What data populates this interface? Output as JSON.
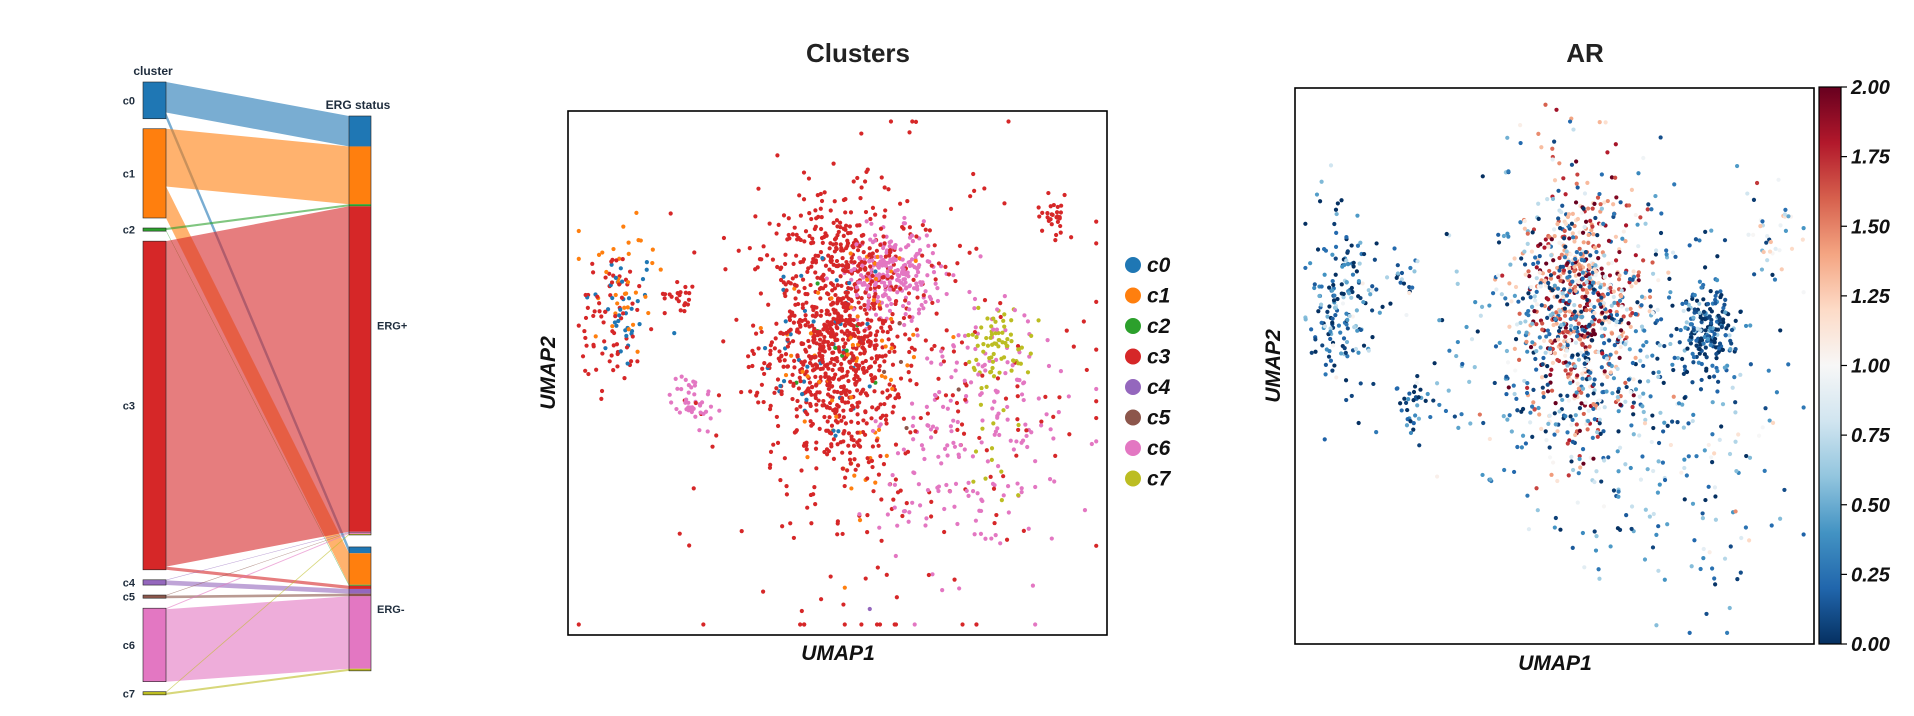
{
  "colors": {
    "c0": "#1f77b4",
    "c1": "#ff7f0e",
    "c2": "#2ca02c",
    "c3": "#d62728",
    "c4": "#9467bd",
    "c5": "#8c564b",
    "c6": "#e377c2",
    "c7": "#bcbd22"
  },
  "chart_data": [
    {
      "type": "sankey",
      "left_header": "cluster",
      "right_header": "ERG status",
      "left_categories": [
        "c0",
        "c1",
        "c2",
        "c3",
        "c4",
        "c5",
        "c6",
        "c7"
      ],
      "right_categories": [
        "ERG+",
        "ERG-"
      ],
      "left_totals": [
        3.5,
        8.5,
        0.3,
        31.3,
        0.5,
        0.3,
        7.0,
        0.3
      ],
      "flows": [
        {
          "from": "c0",
          "to": "ERG+",
          "value": 2.9
        },
        {
          "from": "c0",
          "to": "ERG-",
          "value": 0.6
        },
        {
          "from": "c1",
          "to": "ERG+",
          "value": 5.5
        },
        {
          "from": "c1",
          "to": "ERG-",
          "value": 3.0
        },
        {
          "from": "c2",
          "to": "ERG+",
          "value": 0.2
        },
        {
          "from": "c2",
          "to": "ERG-",
          "value": 0.1
        },
        {
          "from": "c3",
          "to": "ERG+",
          "value": 31.0
        },
        {
          "from": "c3",
          "to": "ERG-",
          "value": 0.3
        },
        {
          "from": "c4",
          "to": "ERG+",
          "value": 0.05
        },
        {
          "from": "c4",
          "to": "ERG-",
          "value": 0.45
        },
        {
          "from": "c5",
          "to": "ERG+",
          "value": 0.05
        },
        {
          "from": "c5",
          "to": "ERG-",
          "value": 0.25
        },
        {
          "from": "c6",
          "to": "ERG+",
          "value": 0.1
        },
        {
          "from": "c6",
          "to": "ERG-",
          "value": 6.9
        },
        {
          "from": "c7",
          "to": "ERG+",
          "value": 0.1
        },
        {
          "from": "c7",
          "to": "ERG-",
          "value": 0.2
        }
      ]
    },
    {
      "type": "scatter",
      "title": "Clusters",
      "xlabel": "UMAP1",
      "ylabel": "UMAP2",
      "legend_position": "right",
      "series": [
        {
          "name": "c0",
          "clusters": [
            {
              "cx": 0.1,
              "cy": 0.62,
              "sx": 0.035,
              "sy": 0.06,
              "n": 35
            },
            {
              "cx": 0.48,
              "cy": 0.55,
              "sx": 0.06,
              "sy": 0.1,
              "n": 40
            }
          ]
        },
        {
          "name": "c1",
          "clusters": [
            {
              "cx": 0.1,
              "cy": 0.68,
              "sx": 0.04,
              "sy": 0.08,
              "n": 35
            },
            {
              "cx": 0.53,
              "cy": 0.55,
              "sx": 0.08,
              "sy": 0.12,
              "n": 60
            },
            {
              "cx": 0.56,
              "cy": 0.3,
              "sx": 0.03,
              "sy": 0.05,
              "n": 10
            }
          ]
        },
        {
          "name": "c2",
          "clusters": [
            {
              "cx": 0.5,
              "cy": 0.58,
              "sx": 0.05,
              "sy": 0.07,
              "n": 8
            }
          ]
        },
        {
          "name": "c3",
          "clusters": [
            {
              "cx": 0.5,
              "cy": 0.57,
              "sx": 0.06,
              "sy": 0.13,
              "n": 900
            },
            {
              "cx": 0.08,
              "cy": 0.6,
              "sx": 0.03,
              "sy": 0.07,
              "n": 70
            },
            {
              "cx": 0.21,
              "cy": 0.65,
              "sx": 0.015,
              "sy": 0.015,
              "n": 22
            },
            {
              "cx": 0.9,
              "cy": 0.8,
              "sx": 0.015,
              "sy": 0.02,
              "n": 28
            },
            {
              "cx": 0.6,
              "cy": 0.45,
              "sx": 0.2,
              "sy": 0.22,
              "n": 220
            },
            {
              "cx": 0.58,
              "cy": 0.75,
              "sx": 0.12,
              "sy": 0.08,
              "n": 50
            }
          ]
        },
        {
          "name": "c4",
          "clusters": [
            {
              "cx": 0.56,
              "cy": 0.05,
              "sx": 0.003,
              "sy": 0.003,
              "n": 1
            }
          ]
        },
        {
          "name": "c5",
          "clusters": [
            {
              "cx": 0.6,
              "cy": 0.45,
              "sx": 0.1,
              "sy": 0.1,
              "n": 6
            }
          ]
        },
        {
          "name": "c6",
          "clusters": [
            {
              "cx": 0.6,
              "cy": 0.69,
              "sx": 0.04,
              "sy": 0.04,
              "n": 240
            },
            {
              "cx": 0.23,
              "cy": 0.45,
              "sx": 0.02,
              "sy": 0.025,
              "n": 45
            },
            {
              "cx": 0.76,
              "cy": 0.55,
              "sx": 0.06,
              "sy": 0.06,
              "n": 60
            },
            {
              "cx": 0.75,
              "cy": 0.33,
              "sx": 0.09,
              "sy": 0.12,
              "n": 160
            }
          ]
        },
        {
          "name": "c7",
          "clusters": [
            {
              "cx": 0.8,
              "cy": 0.56,
              "sx": 0.03,
              "sy": 0.035,
              "n": 70
            },
            {
              "cx": 0.78,
              "cy": 0.3,
              "sx": 0.05,
              "sy": 0.1,
              "n": 14
            }
          ]
        }
      ]
    },
    {
      "type": "scatter",
      "title": "AR",
      "xlabel": "UMAP1",
      "ylabel": "UMAP2",
      "colorbar": {
        "range": [
          0.0,
          2.0
        ],
        "ticks": [
          "0.00",
          "0.25",
          "0.50",
          "0.75",
          "1.00",
          "1.25",
          "1.50",
          "1.75",
          "2.00"
        ],
        "colormap": [
          "#053061",
          "#2166ac",
          "#4393c3",
          "#92c5de",
          "#d1e5f0",
          "#f7f7f7",
          "#fddbc7",
          "#f4a582",
          "#d6604d",
          "#b2182b",
          "#67001f"
        ]
      },
      "groups": [
        {
          "cx": 0.09,
          "cy": 0.63,
          "sx": 0.035,
          "sy": 0.08,
          "n": 180,
          "level": 0.25
        },
        {
          "cx": 0.21,
          "cy": 0.66,
          "sx": 0.015,
          "sy": 0.015,
          "n": 18,
          "level": 0.3
        },
        {
          "cx": 0.23,
          "cy": 0.43,
          "sx": 0.015,
          "sy": 0.025,
          "n": 30,
          "level": 0.2
        },
        {
          "cx": 0.55,
          "cy": 0.6,
          "sx": 0.06,
          "sy": 0.12,
          "n": 700,
          "level": 1.55
        },
        {
          "cx": 0.52,
          "cy": 0.55,
          "sx": 0.12,
          "sy": 0.13,
          "n": 300,
          "level": 0.45
        },
        {
          "cx": 0.8,
          "cy": 0.56,
          "sx": 0.025,
          "sy": 0.035,
          "n": 170,
          "level": 0.05
        },
        {
          "cx": 0.68,
          "cy": 0.55,
          "sx": 0.12,
          "sy": 0.12,
          "n": 180,
          "level": 0.35
        },
        {
          "cx": 0.72,
          "cy": 0.3,
          "sx": 0.12,
          "sy": 0.12,
          "n": 130,
          "level": 0.55
        },
        {
          "cx": 0.92,
          "cy": 0.75,
          "sx": 0.025,
          "sy": 0.04,
          "n": 35,
          "level": 1.1
        },
        {
          "cx": 0.48,
          "cy": 0.9,
          "sx": 0.04,
          "sy": 0.04,
          "n": 12,
          "level": 1.1
        }
      ]
    }
  ]
}
